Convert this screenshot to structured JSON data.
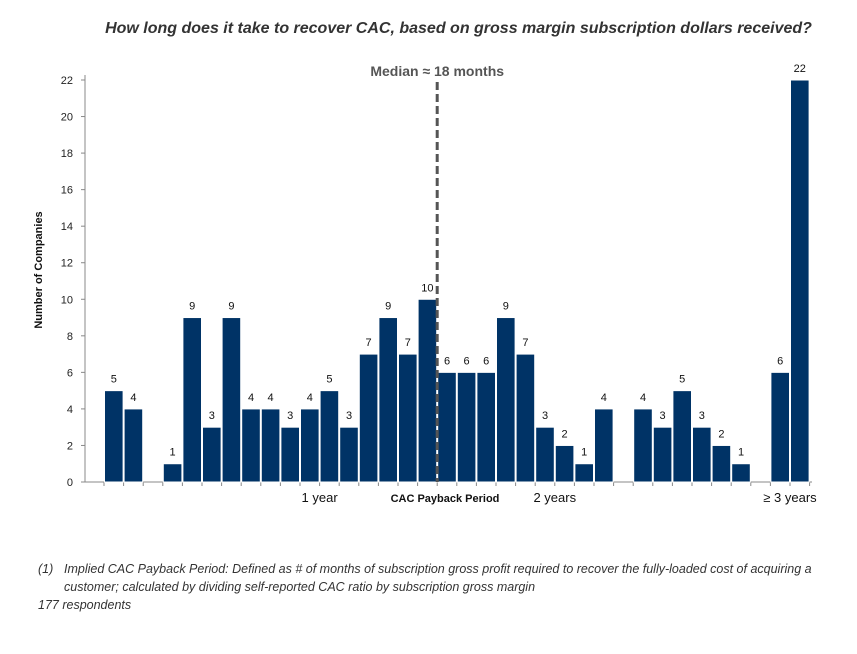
{
  "chart_data": {
    "type": "bar",
    "title": "How long does it take to recover CAC, based on gross margin subscription dollars received?",
    "ylabel": "Number of Companies",
    "xlabel": "CAC Payback Period",
    "ylim": [
      0,
      22
    ],
    "yticks": [
      0,
      2,
      4,
      6,
      8,
      10,
      12,
      14,
      16,
      18,
      20,
      22
    ],
    "values": [
      5,
      4,
      0,
      1,
      9,
      3,
      9,
      4,
      4,
      3,
      4,
      5,
      3,
      7,
      9,
      7,
      10,
      6,
      6,
      6,
      9,
      7,
      3,
      2,
      1,
      4,
      0,
      4,
      3,
      5,
      3,
      2,
      1,
      0,
      6,
      22
    ],
    "x_labels": [
      {
        "label": "1 year",
        "after_bar": 11
      },
      {
        "label": "2 years",
        "after_bar": 23
      },
      {
        "label": "≥ 3 years",
        "after_bar": 35
      }
    ],
    "median": {
      "label": "Median ≈ 18 months",
      "after_bar": 17
    },
    "bar_color": "#003366",
    "median_color": "#555555"
  },
  "footnote": {
    "number": "(1)",
    "line1": "Implied CAC Payback Period: Defined as # of months of subscription gross profit required to recover the fully-loaded cost of acquiring a",
    "line2": "customer; calculated by dividing self-reported CAC ratio by subscription gross margin",
    "respondents": "177 respondents"
  }
}
